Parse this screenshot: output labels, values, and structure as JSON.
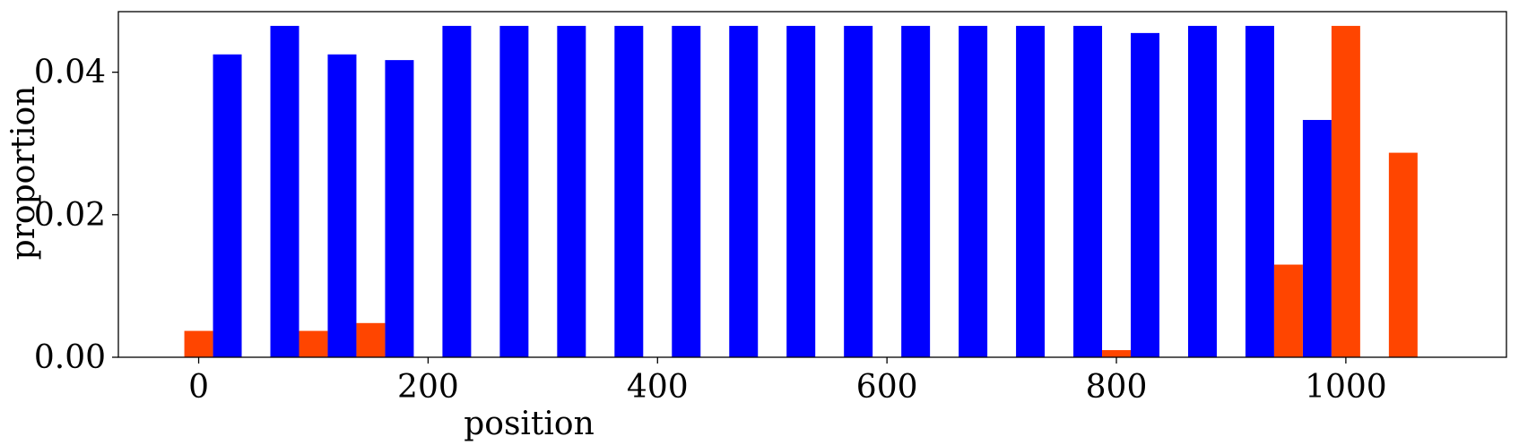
{
  "chart_data": {
    "type": "bar",
    "xlabel": "position",
    "ylabel": "proportion",
    "xlim": [
      -70,
      1140
    ],
    "ylim": [
      0,
      0.0485
    ],
    "x_ticks": [
      {
        "value": 0,
        "label": "0"
      },
      {
        "value": 200,
        "label": "200"
      },
      {
        "value": 400,
        "label": "400"
      },
      {
        "value": 600,
        "label": "600"
      },
      {
        "value": 800,
        "label": "800"
      },
      {
        "value": 1000,
        "label": "1000"
      }
    ],
    "y_ticks": [
      {
        "value": 0,
        "label": "0.00"
      },
      {
        "value": 0.02,
        "label": "0.02"
      },
      {
        "value": 0.04,
        "label": "0.04"
      }
    ],
    "bar_width": 25,
    "grid": false,
    "series": [
      {
        "color": "#0000ff",
        "x": [
          25,
          75,
          125,
          175,
          225,
          275,
          325,
          375,
          425,
          475,
          525,
          575,
          625,
          675,
          725,
          775,
          825,
          875,
          925,
          975
        ],
        "values": [
          0.0425,
          0.0465,
          0.0425,
          0.0417,
          0.0465,
          0.0465,
          0.0465,
          0.0465,
          0.0465,
          0.0465,
          0.0465,
          0.0465,
          0.0465,
          0.0465,
          0.0465,
          0.0465,
          0.0455,
          0.0465,
          0.0465,
          0.0333
        ]
      },
      {
        "color": "#ff4500",
        "x": [
          0,
          100,
          150,
          800,
          950,
          1000,
          1050
        ],
        "values": [
          0.0037,
          0.0037,
          0.0048,
          0.001,
          0.013,
          0.0465,
          0.0287
        ]
      }
    ]
  }
}
